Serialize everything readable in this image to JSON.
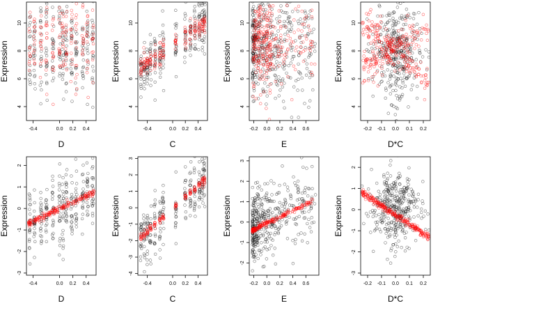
{
  "figure": {
    "background": "#ffffff"
  },
  "colors": {
    "observed": "#000000",
    "fitted": "#ff0000"
  },
  "chart_data": [
    {
      "type": "scatter",
      "panel": "top-D",
      "title": "",
      "xlabel": "D",
      "ylabel": "Expression",
      "xlim": [
        -0.5,
        0.55
      ],
      "ylim": [
        3,
        11.5
      ],
      "xticks": [
        -0.4,
        0.0,
        0.2,
        0.4
      ],
      "xtick_labels": [
        "-0.4",
        "0.0",
        "0.2",
        "0.4"
      ],
      "yticks": [
        4,
        6,
        8,
        10
      ],
      "ytick_labels": [
        "4",
        "6",
        "8",
        "10"
      ],
      "x_levels": [
        -0.45,
        -0.38,
        -0.28,
        -0.2,
        -0.1,
        0.0,
        0.05,
        0.1,
        0.18,
        0.25,
        0.35,
        0.42,
        0.5
      ],
      "observed": {
        "type": "columns",
        "y_center": 8.3,
        "y_spread": 1.7,
        "points_per_column": 20,
        "x_jitter": 0.012
      },
      "fitted": {
        "type": "columns",
        "y_center": 8.5,
        "y_spread": 1.5,
        "points_per_column": 14,
        "x_jitter": 0.012
      }
    },
    {
      "type": "scatter",
      "panel": "top-C",
      "title": "",
      "xlabel": "C",
      "ylabel": "Expression",
      "xlim": [
        -0.55,
        0.55
      ],
      "ylim": [
        3,
        11.5
      ],
      "xticks": [
        -0.4,
        0.0,
        0.2,
        0.4
      ],
      "xtick_labels": [
        "-0.4",
        "0.0",
        "0.2",
        "0.4"
      ],
      "yticks": [
        4,
        6,
        8,
        10
      ],
      "ytick_labels": [
        "4",
        "6",
        "8",
        "10"
      ],
      "x_levels": [
        -0.5,
        -0.45,
        -0.4,
        -0.35,
        -0.28,
        -0.2,
        -0.15,
        0.05,
        0.2,
        0.28,
        0.35,
        0.42,
        0.47,
        0.5
      ],
      "observed": {
        "type": "columns",
        "trend": [
          [
            -0.5,
            6.5
          ],
          [
            0.5,
            10.2
          ]
        ],
        "y_spread": 1.0,
        "points_per_column": 18,
        "x_jitter": 0.01
      },
      "fitted": {
        "type": "columns",
        "trend": [
          [
            -0.5,
            6.8
          ],
          [
            0.5,
            10.0
          ]
        ],
        "y_spread": 0.4,
        "points_per_column": 12,
        "x_jitter": 0.01
      }
    },
    {
      "type": "scatter",
      "panel": "top-E",
      "title": "",
      "xlabel": "E",
      "ylabel": "Expression",
      "xlim": [
        -0.27,
        0.8
      ],
      "ylim": [
        3,
        11.5
      ],
      "xticks": [
        -0.2,
        0.0,
        0.2,
        0.4,
        0.6
      ],
      "xtick_labels": [
        "-0.2",
        "0.0",
        "0.2",
        "0.4",
        "0.6"
      ],
      "yticks": [
        4,
        6,
        8,
        10
      ],
      "ytick_labels": [
        "4",
        "6",
        "8",
        "10"
      ],
      "x_levels": [
        -0.2,
        -0.17,
        -0.13,
        -0.1,
        -0.05,
        0.0,
        0.05
      ],
      "observed": {
        "type": "cloud",
        "x_range": [
          -0.22,
          0.75
        ],
        "x_skew": 2.2,
        "y_center": 8.2,
        "y_spread": 1.9,
        "count": 420
      },
      "fitted": {
        "type": "columns",
        "y_center": 8.4,
        "y_spread": 1.6,
        "points_per_column": 26,
        "x_jitter": 0.01,
        "extra_cloud": {
          "x_range": [
            0.0,
            0.75
          ],
          "y_center": 8.6,
          "y_spread": 1.4,
          "count": 110
        }
      }
    },
    {
      "type": "scatter",
      "panel": "top-DxC",
      "title": "",
      "xlabel": "D*C",
      "ylabel": "Expression",
      "xlim": [
        -0.25,
        0.25
      ],
      "ylim": [
        3,
        11.5
      ],
      "xticks": [
        -0.2,
        -0.1,
        0.0,
        0.1,
        0.2
      ],
      "xtick_labels": [
        "-0.2",
        "-0.1",
        "0.0",
        "0.1",
        "0.2"
      ],
      "yticks": [
        4,
        6,
        8,
        10
      ],
      "ytick_labels": [
        "4",
        "6",
        "8",
        "10"
      ],
      "observed": {
        "type": "cloud",
        "x_range": [
          -0.24,
          0.24
        ],
        "x_skew": 1.0,
        "y_center": 8.0,
        "y_spread": 1.6,
        "count": 360,
        "center_concentration": 1.8
      },
      "fitted": {
        "type": "x-shape",
        "x_range": [
          -0.24,
          0.24
        ],
        "lines": [
          [
            [
              -0.24,
              10.3
            ],
            [
              0.24,
              5.8
            ]
          ],
          [
            [
              -0.24,
              6.8
            ],
            [
              0.24,
              9.8
            ]
          ]
        ],
        "y_spread": 0.6,
        "count": 320
      }
    },
    {
      "type": "scatter",
      "panel": "bottom-D",
      "title": "",
      "xlabel": "D",
      "ylabel": "Expression",
      "xlim": [
        -0.5,
        0.55
      ],
      "ylim": [
        -3.1,
        2.4
      ],
      "xticks": [
        -0.4,
        0.0,
        0.2,
        0.4
      ],
      "xtick_labels": [
        "-0.4",
        "0.0",
        "0.2",
        "0.4"
      ],
      "yticks": [
        -3,
        -2,
        -1,
        0,
        1,
        2
      ],
      "ytick_labels": [
        "-3",
        "-2",
        "-1",
        "0",
        "1",
        "2"
      ],
      "x_levels": [
        -0.45,
        -0.38,
        -0.28,
        -0.2,
        -0.1,
        0.0,
        0.05,
        0.1,
        0.18,
        0.25,
        0.35,
        0.42,
        0.5
      ],
      "observed": {
        "type": "columns",
        "trend": [
          [
            -0.5,
            -0.8
          ],
          [
            0.55,
            0.8
          ]
        ],
        "y_spread": 0.8,
        "points_per_column": 22,
        "x_jitter": 0.01
      },
      "fitted": {
        "type": "line",
        "trend": [
          [
            -0.48,
            -0.72
          ],
          [
            0.52,
            0.75
          ]
        ],
        "y_spread": 0.07,
        "count": 180
      }
    },
    {
      "type": "scatter",
      "panel": "bottom-C",
      "title": "",
      "xlabel": "C",
      "ylabel": "Expression",
      "xlim": [
        -0.55,
        0.55
      ],
      "ylim": [
        -4.1,
        3.1
      ],
      "xticks": [
        -0.4,
        0.0,
        0.2,
        0.4
      ],
      "xtick_labels": [
        "-0.4",
        "0.0",
        "0.2",
        "0.4"
      ],
      "yticks": [
        -4,
        -3,
        -2,
        -1,
        0,
        1,
        2,
        3
      ],
      "ytick_labels": [
        "-4",
        "-3",
        "-2",
        "-1",
        "0",
        "1",
        "2",
        "3"
      ],
      "x_levels": [
        -0.5,
        -0.45,
        -0.4,
        -0.35,
        -0.28,
        -0.2,
        -0.15,
        0.05,
        0.2,
        0.28,
        0.35,
        0.42,
        0.47,
        0.5
      ],
      "observed": {
        "type": "columns",
        "trend": [
          [
            -0.5,
            -2.0
          ],
          [
            0.5,
            1.7
          ]
        ],
        "y_spread": 0.9,
        "points_per_column": 18,
        "x_jitter": 0.01
      },
      "fitted": {
        "type": "columns",
        "trend": [
          [
            -0.5,
            -1.8
          ],
          [
            0.5,
            1.7
          ]
        ],
        "y_spread": 0.12,
        "points_per_column": 10,
        "x_jitter": 0.01
      }
    },
    {
      "type": "scatter",
      "panel": "bottom-E",
      "title": "",
      "xlabel": "E",
      "ylabel": "Expression",
      "xlim": [
        -0.27,
        0.8
      ],
      "ylim": [
        -2.6,
        3.2
      ],
      "xticks": [
        -0.2,
        0.0,
        0.2,
        0.4,
        0.6
      ],
      "xtick_labels": [
        "-0.2",
        "0.0",
        "0.2",
        "0.4",
        "0.6"
      ],
      "yticks": [
        -2,
        -1,
        0,
        1,
        2,
        3
      ],
      "ytick_labels": [
        "-2",
        "-1",
        "0",
        "1",
        "2",
        "3"
      ],
      "observed": {
        "type": "cloud",
        "x_range": [
          -0.22,
          0.75
        ],
        "x_skew": 2.2,
        "trend": [
          [
            -0.2,
            -0.3
          ],
          [
            0.7,
            1.2
          ]
        ],
        "y_spread": 0.9,
        "count": 400
      },
      "fitted": {
        "type": "line",
        "trend": [
          [
            -0.22,
            -0.4
          ],
          [
            0.72,
            1.05
          ]
        ],
        "y_spread": 0.06,
        "count": 200,
        "x_skew": 2.0
      }
    },
    {
      "type": "scatter",
      "panel": "bottom-DxC",
      "title": "",
      "xlabel": "D*C",
      "ylabel": "Expression",
      "xlim": [
        -0.25,
        0.25
      ],
      "ylim": [
        -3.1,
        2.5
      ],
      "xticks": [
        -0.2,
        -0.1,
        0.0,
        0.1,
        0.2
      ],
      "xtick_labels": [
        "-0.2",
        "-0.1",
        "0.0",
        "0.1",
        "0.2"
      ],
      "yticks": [
        -3,
        -2,
        -1,
        0,
        1,
        2
      ],
      "ytick_labels": [
        "-3",
        "-2",
        "-1",
        "0",
        "1",
        "2"
      ],
      "observed": {
        "type": "cloud",
        "x_range": [
          -0.24,
          0.24
        ],
        "x_skew": 1.0,
        "y_center": 0.0,
        "y_spread": 0.8,
        "count": 360,
        "center_concentration": 1.8
      },
      "fitted": {
        "type": "line",
        "trend": [
          [
            -0.24,
            0.8
          ],
          [
            0.24,
            -1.3
          ]
        ],
        "y_spread": 0.08,
        "count": 260
      }
    }
  ]
}
